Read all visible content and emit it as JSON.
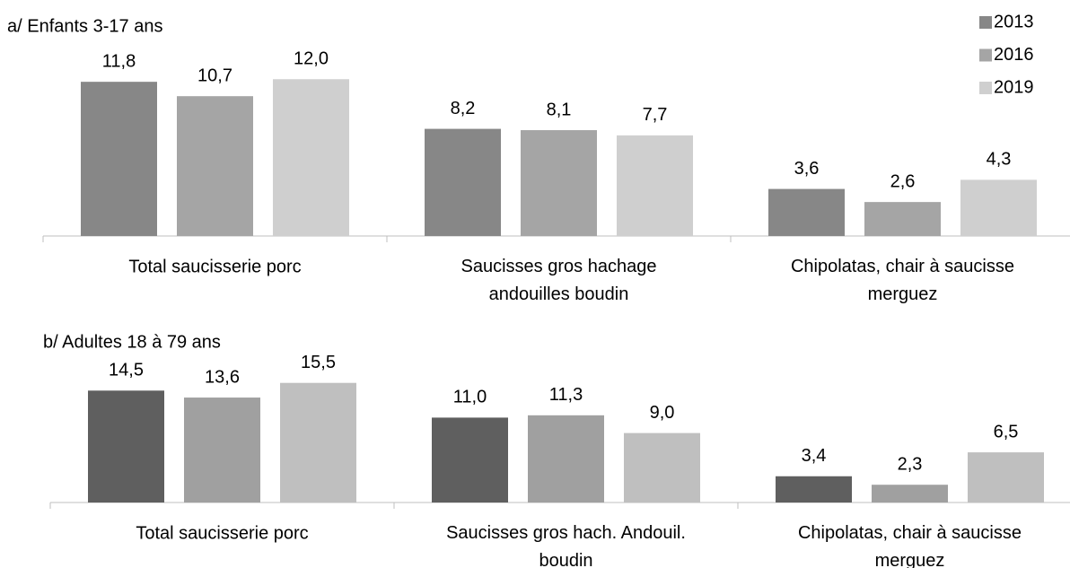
{
  "chart_data": [
    {
      "type": "bar",
      "title": "a/ Enfants 3-17 ans",
      "categories": [
        "Total saucisserie porc",
        "Saucisses gros hachage\nandouilles boudin",
        "Chipolatas, chair à saucisse\nmerguez"
      ],
      "series": [
        {
          "name": "2013",
          "color": "#878787",
          "values": [
            11.8,
            8.2,
            3.6
          ],
          "value_labels": [
            "11,8",
            "8,2",
            "3,6"
          ]
        },
        {
          "name": "2016",
          "color": "#a5a5a5",
          "values": [
            10.7,
            8.1,
            2.6
          ],
          "value_labels": [
            "10,7",
            "8,1",
            "2,6"
          ]
        },
        {
          "name": "2019",
          "color": "#cfcfcf",
          "values": [
            12.0,
            7.7,
            4.3
          ],
          "value_labels": [
            "12,0",
            "7,7",
            "4,3"
          ]
        }
      ],
      "ylim": [
        0,
        16
      ],
      "legend": "top-right"
    },
    {
      "type": "bar",
      "title": "b/ Adultes 18 à 79 ans",
      "categories": [
        "Total saucisserie porc",
        "Saucisses gros hach. Andouil.\nboudin",
        "Chipolatas, chair à saucisse\nmerguez"
      ],
      "series": [
        {
          "name": "2013",
          "color": "#5f5f5f",
          "values": [
            14.5,
            11.0,
            3.4
          ],
          "value_labels": [
            "14,5",
            "11,0",
            "3,4"
          ]
        },
        {
          "name": "2016",
          "color": "#a0a0a0",
          "values": [
            13.6,
            11.3,
            2.3
          ],
          "value_labels": [
            "13,6",
            "11,3",
            "2,3"
          ]
        },
        {
          "name": "2019",
          "color": "#bfbfbf",
          "values": [
            15.5,
            9.0,
            6.5
          ],
          "value_labels": [
            "15,5",
            "9,0",
            "6,5"
          ]
        }
      ],
      "ylim": [
        0,
        20
      ]
    }
  ]
}
